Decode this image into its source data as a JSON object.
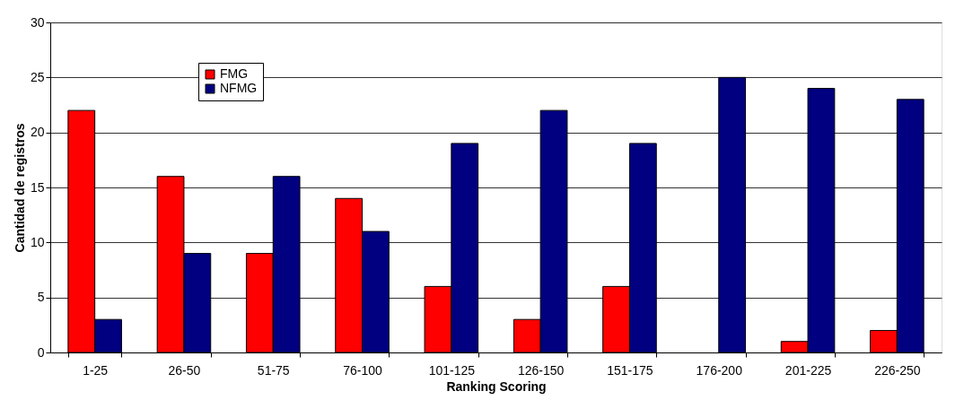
{
  "chart_data": {
    "type": "bar",
    "categories": [
      "1-25",
      "26-50",
      "51-75",
      "76-100",
      "101-125",
      "126-150",
      "151-175",
      "176-200",
      "201-225",
      "226-250"
    ],
    "series": [
      {
        "name": "FMG",
        "color": "#ff0000",
        "values": [
          22,
          16,
          9,
          14,
          6,
          3,
          6,
          0,
          1,
          2
        ]
      },
      {
        "name": "NFMG",
        "color": "#000080",
        "values": [
          3,
          9,
          16,
          11,
          19,
          22,
          19,
          25,
          24,
          23
        ]
      }
    ],
    "xlabel": "Ranking Scoring",
    "ylabel": "Cantidad de registros",
    "ylim": [
      0,
      30
    ],
    "yticks": [
      0,
      5,
      10,
      15,
      20,
      25,
      30
    ],
    "grid": "y",
    "legend": "top left"
  }
}
